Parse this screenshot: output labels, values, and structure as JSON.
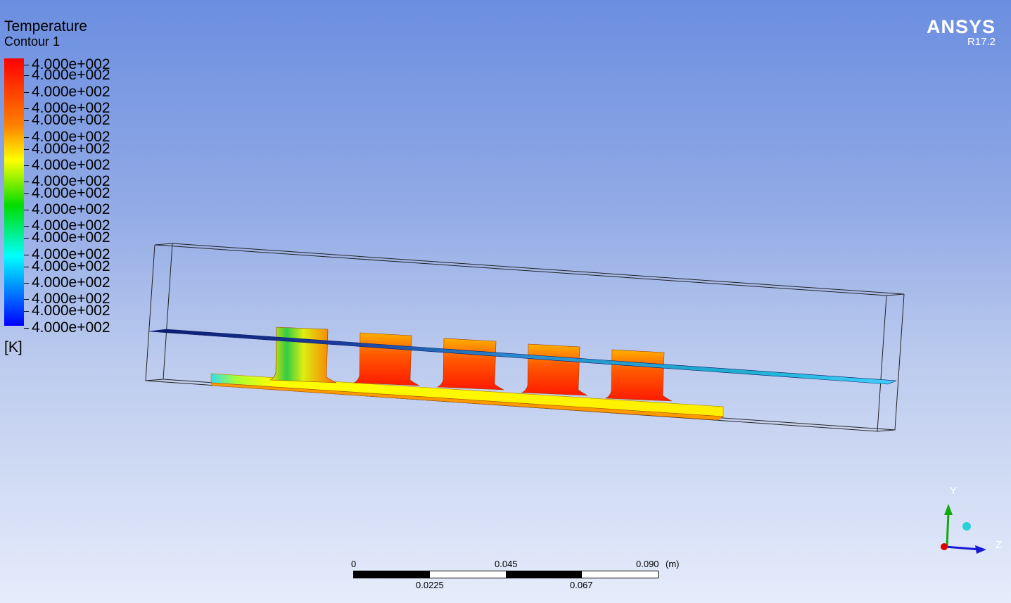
{
  "legend": {
    "title": "Temperature",
    "subtitle": "Contour 1",
    "unit": "[K]",
    "ticks": [
      "4.000e+002",
      "4.000e+002",
      "4.000e+002",
      "4.000e+002",
      "4.000e+002",
      "4.000e+002",
      "4.000e+002",
      "4.000e+002",
      "4.000e+002",
      "4.000e+002",
      "4.000e+002",
      "4.000e+002",
      "4.000e+002",
      "4.000e+002",
      "4.000e+002",
      "4.000e+002",
      "4.000e+002",
      "4.000e+002",
      "4.000e+002",
      "4.000e+002"
    ],
    "colors": [
      "#ff0000",
      "#ff8000",
      "#ffff00",
      "#00dd00",
      "#00ffff",
      "#0000ff"
    ]
  },
  "logo": {
    "name": "ANSYS",
    "version": "R17.2"
  },
  "scale": {
    "top_labels": [
      "0",
      "0.045",
      "0.090"
    ],
    "unit": "(m)",
    "bottom_labels": [
      "0.0225",
      "0.067"
    ]
  },
  "axes": {
    "y": "Y",
    "z": "Z"
  },
  "background": {
    "top": "#6b8ee0",
    "bottom": "#e6ecfb"
  }
}
